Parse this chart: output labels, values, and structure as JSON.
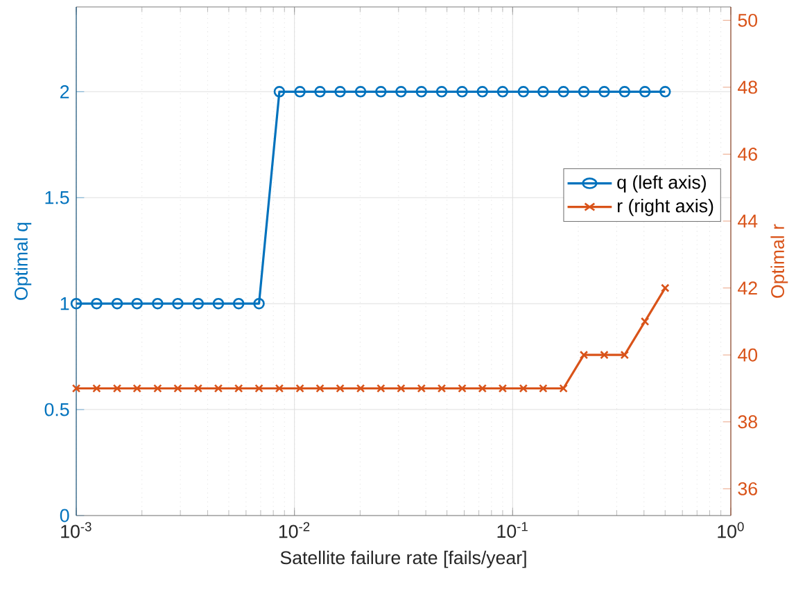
{
  "chart_data": {
    "type": "line",
    "xlabel": "Satellite failure rate [fails/year]",
    "ylabel": "Optimal q",
    "y2label": "Optimal r",
    "log": "x",
    "grid": true,
    "legend": "right",
    "xlim": [
      0.001,
      1
    ],
    "xticks": [
      {
        "value": 0.001,
        "label": "10$^{-3}$"
      },
      {
        "value": 0.01,
        "label": "10$^{-2}$"
      },
      {
        "value": 0.1,
        "label": "10$^{-1}$"
      },
      {
        "value": 1,
        "label": "10$^{0}$"
      }
    ],
    "ylim": [
      0,
      2.4
    ],
    "yticks": [
      0,
      0.5,
      1,
      1.5,
      2
    ],
    "y2lim": [
      35.2,
      50.4
    ],
    "y2ticks": [
      36,
      38,
      40,
      42,
      44,
      46,
      48,
      50
    ],
    "x": [
      0.001,
      0.00124,
      0.00154,
      0.0019,
      0.00236,
      0.00292,
      0.00362,
      0.00448,
      0.00555,
      0.00688,
      0.00853,
      0.0106,
      0.0131,
      0.0162,
      0.0201,
      0.0249,
      0.0308,
      0.0382,
      0.0473,
      0.0587,
      0.0727,
      0.09,
      0.112,
      0.138,
      0.171,
      0.212,
      0.263,
      0.326,
      0.404,
      0.5
    ],
    "series": [
      {
        "name": "q (left axis)",
        "color": "#0072bd",
        "marker": "circle",
        "values": [
          1,
          1,
          1,
          1,
          1,
          1,
          1,
          1,
          1,
          1,
          2,
          2,
          2,
          2,
          2,
          2,
          2,
          2,
          2,
          2,
          2,
          2,
          2,
          2,
          2,
          2,
          2,
          2,
          2,
          2
        ]
      },
      {
        "name": "r (right axis)",
        "color": "#d95319",
        "marker": "cross",
        "axis": "y2",
        "values": [
          39,
          39,
          39,
          39,
          39,
          39,
          39,
          39,
          39,
          39,
          39,
          39,
          39,
          39,
          39,
          39,
          39,
          39,
          39,
          39,
          39,
          39,
          39,
          39,
          39,
          40,
          40,
          40,
          41,
          42
        ]
      }
    ]
  }
}
